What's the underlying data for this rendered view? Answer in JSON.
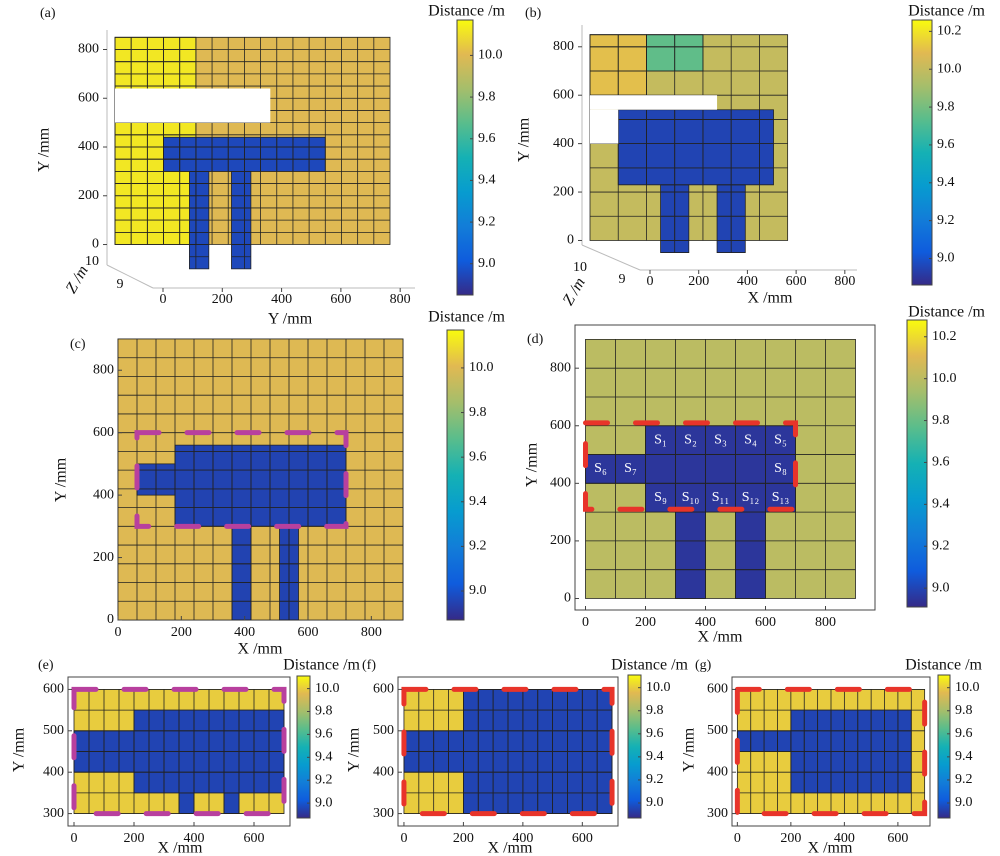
{
  "chart_data": [
    {
      "type": "heatmap3d",
      "panel": "(a)",
      "xlabel": "Y /mm",
      "ylabel": "Y /mm",
      "zlabel": "Z /m",
      "colorbar_label": "Distance /m",
      "xlim": [
        0,
        850
      ],
      "ylim": [
        -125,
        880
      ],
      "xticks": [
        0,
        200,
        400,
        600,
        800
      ],
      "yticks": [
        0,
        200,
        400,
        600,
        800
      ],
      "zticks": [
        10,
        9
      ],
      "clim": [
        8.85,
        10.17
      ],
      "cticks": [
        {
          "value": 10,
          "label": "10.0"
        },
        9.8,
        9.6,
        9.4,
        9.2,
        {
          "value": 9,
          "label": "9.0"
        }
      ],
      "regions": [
        {
          "x": [
            0,
            850
          ],
          "y": [
            0,
            850
          ],
          "value": 10.0
        },
        {
          "x": [
            0,
            250
          ],
          "y": [
            0,
            850
          ],
          "value": 10.12
        },
        {
          "x": [
            150,
            650
          ],
          "y": [
            300,
            440
          ],
          "value": 8.95
        },
        {
          "x": [
            230,
            290
          ],
          "y": [
            -100,
            300
          ],
          "value": 8.95
        },
        {
          "x": [
            360,
            420
          ],
          "y": [
            -100,
            300
          ],
          "value": 8.95
        },
        {
          "x": [
            0,
            480
          ],
          "y": [
            500,
            640
          ],
          "value": null
        }
      ]
    },
    {
      "type": "heatmap3d",
      "panel": "(b)",
      "xlabel": "X /mm",
      "ylabel": "Y /mm",
      "zlabel": "Z /m",
      "colorbar_label": "Distance /m",
      "xlim": [
        0,
        850
      ],
      "ylim": [
        -60,
        890
      ],
      "xticks": [
        0,
        200,
        400,
        600,
        800
      ],
      "yticks": [
        0,
        200,
        400,
        600,
        800
      ],
      "zticks": [
        10,
        9
      ],
      "clim": [
        8.86,
        10.26
      ],
      "cticks": [
        10.2,
        {
          "value": 10,
          "label": "10.0"
        },
        9.8,
        9.6,
        9.4,
        9.2,
        {
          "value": 9,
          "label": "9.0"
        }
      ],
      "regions": [
        {
          "x": [
            0,
            700
          ],
          "y": [
            0,
            850
          ],
          "value": 10.0
        },
        {
          "x": [
            0,
            200
          ],
          "y": [
            600,
            850
          ],
          "value": 10.1
        },
        {
          "x": [
            200,
            400
          ],
          "y": [
            700,
            850
          ],
          "value": 9.75
        },
        {
          "x": [
            100,
            650
          ],
          "y": [
            230,
            540
          ],
          "value": 8.95
        },
        {
          "x": [
            250,
            350
          ],
          "y": [
            -50,
            230
          ],
          "value": 8.95
        },
        {
          "x": [
            450,
            550
          ],
          "y": [
            -50,
            230
          ],
          "value": 8.95
        },
        {
          "x": [
            0,
            100
          ],
          "y": [
            400,
            540
          ],
          "value": null
        },
        {
          "x": [
            0,
            450
          ],
          "y": [
            540,
            600
          ],
          "value": null
        }
      ]
    },
    {
      "type": "heatmap",
      "panel": "(c)",
      "xlabel": "X /mm",
      "ylabel": "Y /mm",
      "colorbar_label": "Distance /m",
      "xlim": [
        0,
        900
      ],
      "ylim": [
        0,
        900
      ],
      "xticks": [
        0,
        200,
        400,
        600,
        800
      ],
      "yticks": [
        0,
        200,
        400,
        600,
        800
      ],
      "clim": [
        8.87,
        10.17
      ],
      "cticks": [
        {
          "value": 10,
          "label": "10.0"
        },
        9.8,
        9.6,
        9.4,
        9.2,
        {
          "value": 9,
          "label": "9.0"
        }
      ],
      "regions": [
        {
          "x": [
            0,
            900
          ],
          "y": [
            0,
            900
          ],
          "value": 10.0
        },
        {
          "x": [
            180,
            720
          ],
          "y": [
            300,
            560
          ],
          "value": 8.95
        },
        {
          "x": [
            60,
            180
          ],
          "y": [
            400,
            500
          ],
          "value": 8.95
        },
        {
          "x": [
            360,
            420
          ],
          "y": [
            0,
            300
          ],
          "value": 8.95
        },
        {
          "x": [
            510,
            570
          ],
          "y": [
            0,
            300
          ],
          "value": 8.95
        }
      ]
    },
    {
      "type": "heatmap",
      "panel": "(d)",
      "xlabel": "X /mm",
      "ylabel": "Y /mm",
      "colorbar_label": "Distance /m",
      "xlim": [
        -35,
        965
      ],
      "ylim": [
        -40,
        950
      ],
      "xticks": [
        0,
        200,
        400,
        600,
        800
      ],
      "yticks": [
        0,
        200,
        400,
        600,
        800
      ],
      "clim": [
        8.91,
        10.28
      ],
      "cticks": [
        10.2,
        {
          "value": 10,
          "label": "10.0"
        },
        9.8,
        9.6,
        9.4,
        9.2,
        {
          "value": 9,
          "label": "9.0"
        }
      ],
      "regions": [
        {
          "x": [
            0,
            900
          ],
          "y": [
            0,
            900
          ],
          "value": 10.0
        },
        {
          "x": [
            200,
            700
          ],
          "y": [
            300,
            600
          ],
          "value": 8.95
        },
        {
          "x": [
            0,
            200
          ],
          "y": [
            400,
            500
          ],
          "value": 8.95
        },
        {
          "x": [
            300,
            400
          ],
          "y": [
            0,
            300
          ],
          "value": 8.95
        },
        {
          "x": [
            500,
            600
          ],
          "y": [
            0,
            300
          ],
          "value": 8.95
        }
      ],
      "annotations": [
        "S₁",
        "S₂",
        "S₃",
        "S₄",
        "S₅",
        "S₆",
        "S₇",
        "S₈",
        "S₉",
        "S₁₀",
        "S₁₁",
        "S₁₂",
        "S₁₃"
      ]
    },
    {
      "type": "heatmap",
      "panel": "(e)",
      "xlabel": "X /mm",
      "ylabel": "Y /mm",
      "colorbar_label": "Distance /m",
      "xlim": [
        -20,
        720
      ],
      "ylim": [
        270,
        630
      ],
      "xticks": [
        0,
        200,
        400,
        600
      ],
      "yticks": [
        300,
        400,
        500,
        600
      ],
      "clim": [
        8.87,
        10.11
      ],
      "cticks": [
        {
          "value": 10,
          "label": "10.0"
        },
        9.8,
        9.6,
        9.4,
        9.2,
        {
          "value": 9,
          "label": "9.0"
        }
      ],
      "regions": [
        {
          "x": [
            0,
            700
          ],
          "y": [
            300,
            600
          ],
          "value": 10.0
        },
        {
          "x": [
            200,
            700
          ],
          "y": [
            350,
            550
          ],
          "value": 8.95
        },
        {
          "x": [
            0,
            200
          ],
          "y": [
            400,
            500
          ],
          "value": 8.95
        },
        {
          "x": [
            350,
            400
          ],
          "y": [
            300,
            350
          ],
          "value": 8.95
        },
        {
          "x": [
            500,
            550
          ],
          "y": [
            300,
            350
          ],
          "value": 8.95
        }
      ]
    },
    {
      "type": "heatmap",
      "panel": "(f)",
      "xlabel": "X /mm",
      "ylabel": "Y /mm",
      "colorbar_label": "Distance /m",
      "xlim": [
        -20,
        720
      ],
      "ylim": [
        270,
        630
      ],
      "xticks": [
        0,
        200,
        400,
        600
      ],
      "yticks": [
        300,
        400,
        500,
        600
      ],
      "clim": [
        8.87,
        10.11
      ],
      "cticks": [
        {
          "value": 10,
          "label": "10.0"
        },
        9.8,
        9.6,
        9.4,
        9.2,
        {
          "value": 9,
          "label": "9.0"
        }
      ],
      "regions": [
        {
          "x": [
            0,
            700
          ],
          "y": [
            300,
            600
          ],
          "value": 10.0
        },
        {
          "x": [
            200,
            700
          ],
          "y": [
            300,
            600
          ],
          "value": 8.95
        },
        {
          "x": [
            0,
            200
          ],
          "y": [
            400,
            500
          ],
          "value": 8.95
        }
      ]
    },
    {
      "type": "heatmap",
      "panel": "(g)",
      "xlabel": "X /mm",
      "ylabel": "Y /mm",
      "colorbar_label": "Distance /m",
      "xlim": [
        -20,
        720
      ],
      "ylim": [
        270,
        630
      ],
      "xticks": [
        0,
        200,
        400,
        600
      ],
      "yticks": [
        300,
        400,
        500,
        600
      ],
      "clim": [
        8.87,
        10.11
      ],
      "cticks": [
        {
          "value": 10,
          "label": "10.0"
        },
        9.8,
        9.6,
        9.4,
        9.2,
        {
          "value": 9,
          "label": "9.0"
        }
      ],
      "regions": [
        {
          "x": [
            0,
            700
          ],
          "y": [
            300,
            600
          ],
          "value": 10.0
        },
        {
          "x": [
            200,
            650
          ],
          "y": [
            350,
            550
          ],
          "value": 8.95
        },
        {
          "x": [
            0,
            200
          ],
          "y": [
            450,
            500
          ],
          "value": 8.95
        }
      ]
    }
  ]
}
